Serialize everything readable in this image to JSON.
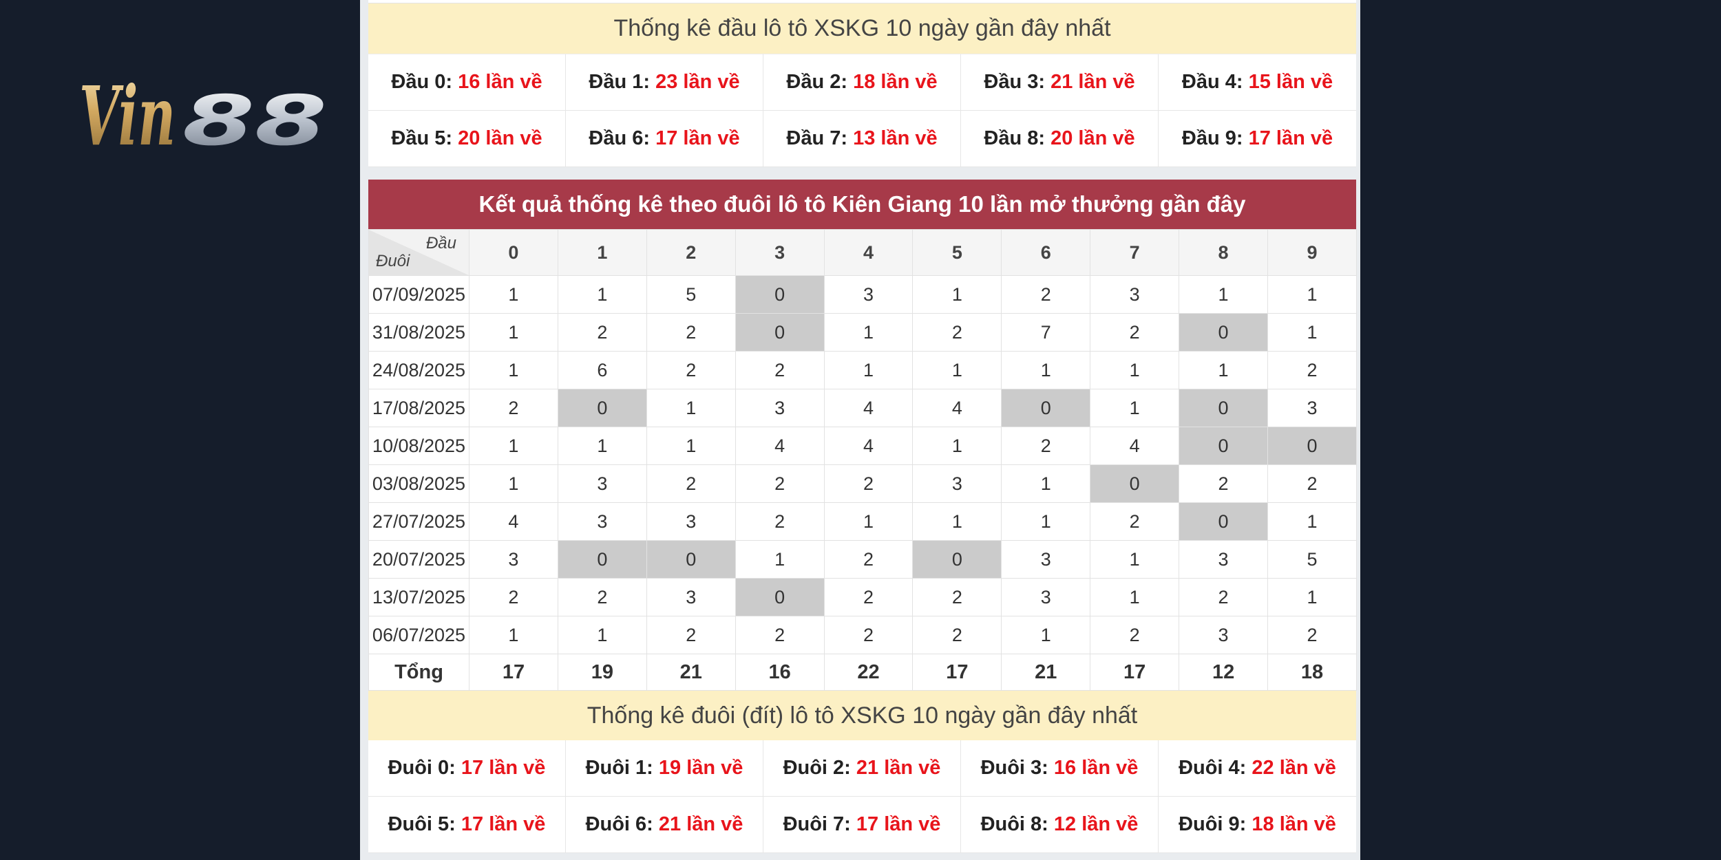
{
  "logo": {
    "text": "Vin88"
  },
  "dau_section": {
    "title": "Thống kê đầu lô tô XSKG 10 ngày gần đây nhất",
    "items": [
      {
        "label": "Đầu 0: ",
        "value": "16 lần về"
      },
      {
        "label": "Đầu 1: ",
        "value": "23 lần về"
      },
      {
        "label": "Đầu 2: ",
        "value": "18 lần về"
      },
      {
        "label": "Đầu 3: ",
        "value": "21 lần về"
      },
      {
        "label": "Đầu 4: ",
        "value": "15 lần về"
      },
      {
        "label": "Đầu 5: ",
        "value": "20 lần về"
      },
      {
        "label": "Đầu 6: ",
        "value": "17 lần về"
      },
      {
        "label": "Đầu 7: ",
        "value": "13 lần về"
      },
      {
        "label": "Đầu 8: ",
        "value": "20 lần về"
      },
      {
        "label": "Đầu 9: ",
        "value": "17 lần về"
      }
    ]
  },
  "table": {
    "title": "Kết quả thống kê theo đuôi lô tô Kiên Giang 10 lần mở thưởng gần đây",
    "corner_top": "Đầu",
    "corner_bottom": "Đuôi",
    "headers": [
      "0",
      "1",
      "2",
      "3",
      "4",
      "5",
      "6",
      "7",
      "8",
      "9"
    ],
    "rows": [
      {
        "date": "07/09/2025",
        "values": [
          "1",
          "1",
          "5",
          "0",
          "3",
          "1",
          "2",
          "3",
          "1",
          "1"
        ]
      },
      {
        "date": "31/08/2025",
        "values": [
          "1",
          "2",
          "2",
          "0",
          "1",
          "2",
          "7",
          "2",
          "0",
          "1"
        ]
      },
      {
        "date": "24/08/2025",
        "values": [
          "1",
          "6",
          "2",
          "2",
          "1",
          "1",
          "1",
          "1",
          "1",
          "2"
        ]
      },
      {
        "date": "17/08/2025",
        "values": [
          "2",
          "0",
          "1",
          "3",
          "4",
          "4",
          "0",
          "1",
          "0",
          "3"
        ]
      },
      {
        "date": "10/08/2025",
        "values": [
          "1",
          "1",
          "1",
          "4",
          "4",
          "1",
          "2",
          "4",
          "0",
          "0"
        ]
      },
      {
        "date": "03/08/2025",
        "values": [
          "1",
          "3",
          "2",
          "2",
          "2",
          "3",
          "1",
          "0",
          "2",
          "2"
        ]
      },
      {
        "date": "27/07/2025",
        "values": [
          "4",
          "3",
          "3",
          "2",
          "1",
          "1",
          "1",
          "2",
          "0",
          "1"
        ]
      },
      {
        "date": "20/07/2025",
        "values": [
          "3",
          "0",
          "0",
          "1",
          "2",
          "0",
          "3",
          "1",
          "3",
          "5"
        ]
      },
      {
        "date": "13/07/2025",
        "values": [
          "2",
          "2",
          "3",
          "0",
          "2",
          "2",
          "3",
          "1",
          "2",
          "1"
        ]
      },
      {
        "date": "06/07/2025",
        "values": [
          "1",
          "1",
          "2",
          "2",
          "2",
          "2",
          "1",
          "2",
          "3",
          "2"
        ]
      }
    ],
    "total_label": "Tổng",
    "totals": [
      "17",
      "19",
      "21",
      "16",
      "22",
      "17",
      "21",
      "17",
      "12",
      "18"
    ],
    "zero_highlight_color": "#cbcbcb",
    "header_color": "#a73a49"
  },
  "duoi_section": {
    "title": "Thống kê đuôi (đít) lô tô XSKG 10 ngày gần đây nhất",
    "items": [
      {
        "label": "Đuôi 0: ",
        "value": "17 lần về"
      },
      {
        "label": "Đuôi 1: ",
        "value": "19 lần về"
      },
      {
        "label": "Đuôi 2: ",
        "value": "21 lần về"
      },
      {
        "label": "Đuôi 3: ",
        "value": "16 lần về"
      },
      {
        "label": "Đuôi 4: ",
        "value": "22 lần về"
      },
      {
        "label": "Đuôi 5: ",
        "value": "17 lần về"
      },
      {
        "label": "Đuôi 6: ",
        "value": "21 lần về"
      },
      {
        "label": "Đuôi 7: ",
        "value": "17 lần về"
      },
      {
        "label": "Đuôi 8: ",
        "value": "12 lần về"
      },
      {
        "label": "Đuôi 9: ",
        "value": "18 lần về"
      }
    ]
  }
}
